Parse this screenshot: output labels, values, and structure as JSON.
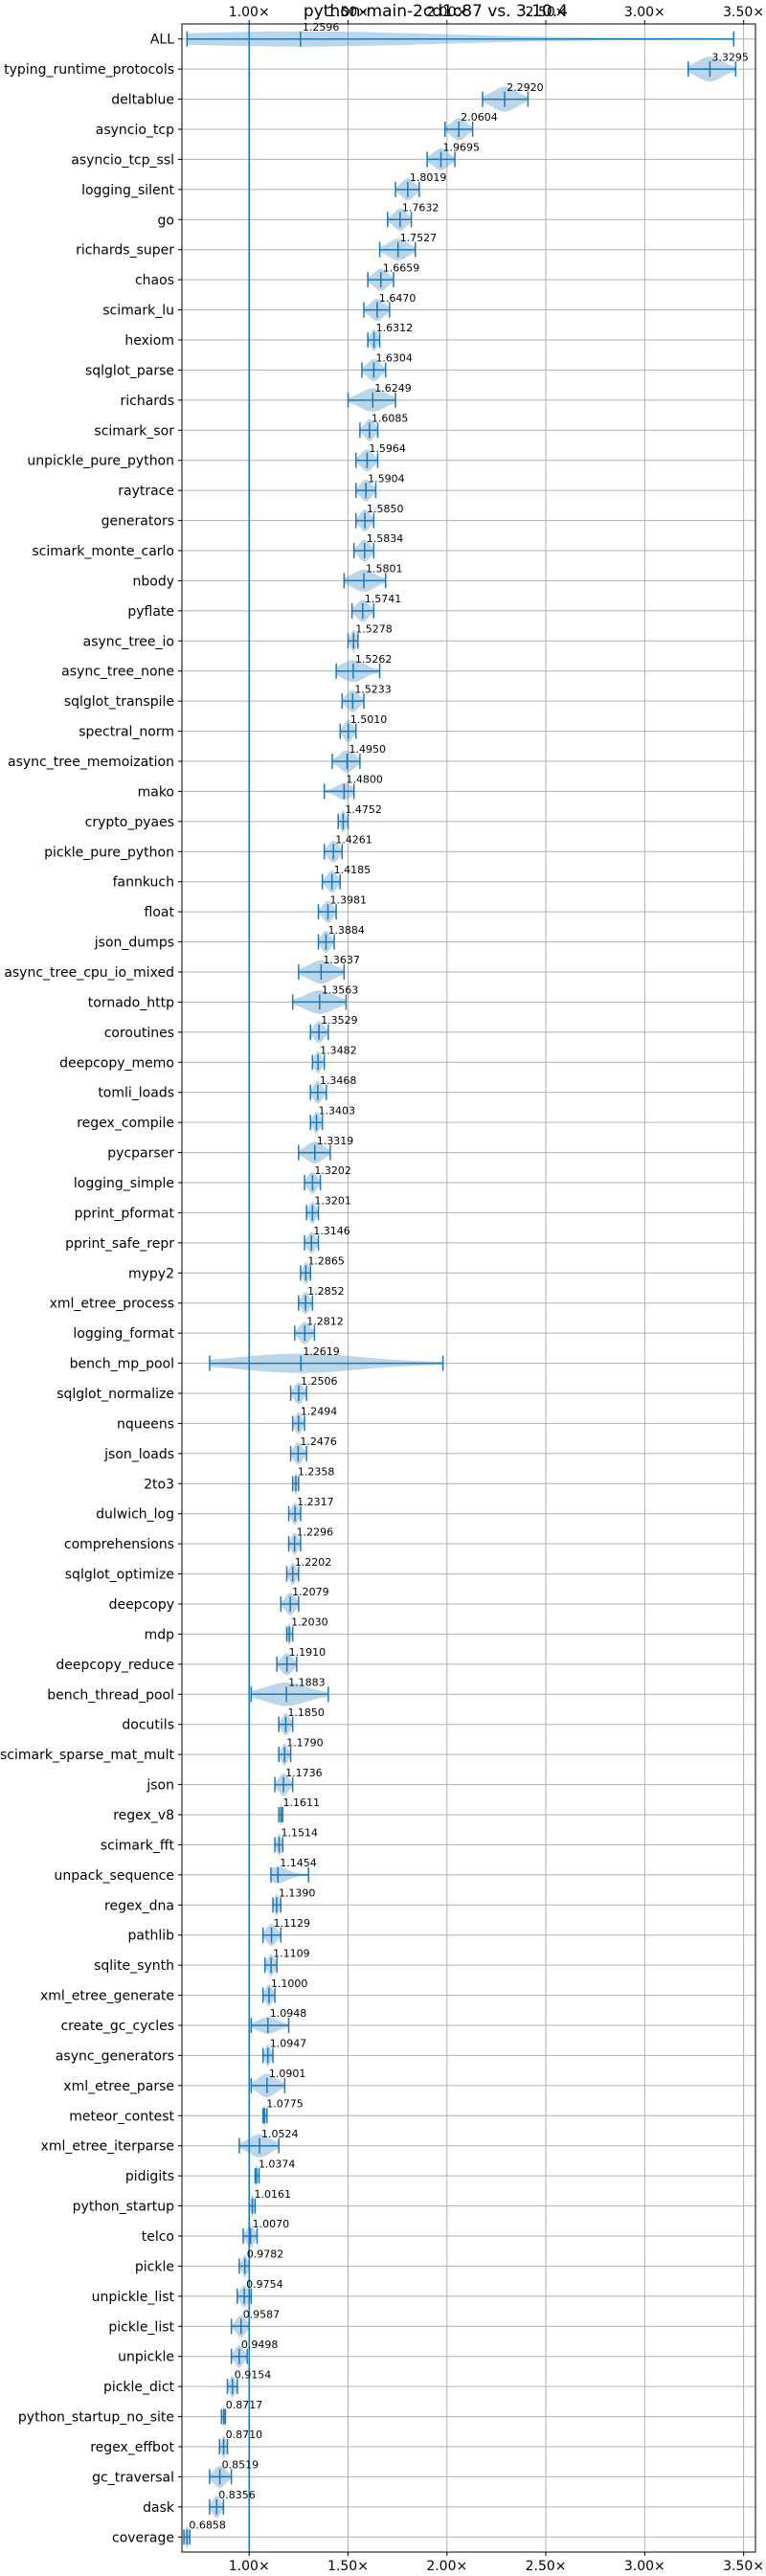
{
  "chart_data": {
    "type": "violin",
    "title": "python-main-2cd1c87 vs. 3.10.4",
    "xlabel": "",
    "ylabel": "",
    "xlim": [
      0.66,
      3.56
    ],
    "x_ticks": [
      1.0,
      1.5,
      2.0,
      2.5,
      3.0,
      3.5
    ],
    "x_tick_labels": [
      "1.00×",
      "1.50×",
      "2.00×",
      "2.50×",
      "3.00×",
      "3.50×"
    ],
    "reference_line": 1.0,
    "grid": true,
    "series_color": "#1f77b4",
    "benchmarks": [
      {
        "name": "ALL",
        "mean": 1.2596,
        "label": "1.2596",
        "min": 0.6858,
        "max": 3.45,
        "width": 0.55
      },
      {
        "name": "typing_runtime_protocols",
        "mean": 3.3295,
        "label": "3.3295",
        "min": 3.22,
        "max": 3.46,
        "width": 0.9
      },
      {
        "name": "deltablue",
        "mean": 2.292,
        "label": "2.2920",
        "min": 2.18,
        "max": 2.41,
        "width": 0.9
      },
      {
        "name": "asyncio_tcp",
        "mean": 2.0604,
        "label": "2.0604",
        "min": 1.99,
        "max": 2.13,
        "width": 0.8
      },
      {
        "name": "asyncio_tcp_ssl",
        "mean": 1.9695,
        "label": "1.9695",
        "min": 1.9,
        "max": 2.04,
        "width": 0.8
      },
      {
        "name": "logging_silent",
        "mean": 1.8019,
        "label": "1.8019",
        "min": 1.74,
        "max": 1.86,
        "width": 0.8
      },
      {
        "name": "go",
        "mean": 1.7632,
        "label": "1.7632",
        "min": 1.7,
        "max": 1.82,
        "width": 0.8
      },
      {
        "name": "richards_super",
        "mean": 1.7527,
        "label": "1.7527",
        "min": 1.66,
        "max": 1.84,
        "width": 0.8
      },
      {
        "name": "chaos",
        "mean": 1.6659,
        "label": "1.6659",
        "min": 1.6,
        "max": 1.73,
        "width": 0.8
      },
      {
        "name": "scimark_lu",
        "mean": 1.647,
        "label": "1.6470",
        "min": 1.58,
        "max": 1.71,
        "width": 0.8
      },
      {
        "name": "hexiom",
        "mean": 1.6312,
        "label": "1.6312",
        "min": 1.6,
        "max": 1.66,
        "width": 0.8
      },
      {
        "name": "sqlglot_parse",
        "mean": 1.6304,
        "label": "1.6304",
        "min": 1.57,
        "max": 1.69,
        "width": 0.8
      },
      {
        "name": "richards",
        "mean": 1.6249,
        "label": "1.6249",
        "min": 1.5,
        "max": 1.74,
        "width": 0.85
      },
      {
        "name": "scimark_sor",
        "mean": 1.6085,
        "label": "1.6085",
        "min": 1.56,
        "max": 1.65,
        "width": 0.8
      },
      {
        "name": "unpickle_pure_python",
        "mean": 1.5964,
        "label": "1.5964",
        "min": 1.54,
        "max": 1.65,
        "width": 0.8
      },
      {
        "name": "raytrace",
        "mean": 1.5904,
        "label": "1.5904",
        "min": 1.54,
        "max": 1.64,
        "width": 0.8
      },
      {
        "name": "generators",
        "mean": 1.585,
        "label": "1.5850",
        "min": 1.54,
        "max": 1.63,
        "width": 0.8
      },
      {
        "name": "scimark_monte_carlo",
        "mean": 1.5834,
        "label": "1.5834",
        "min": 1.53,
        "max": 1.63,
        "width": 0.8
      },
      {
        "name": "nbody",
        "mean": 1.5801,
        "label": "1.5801",
        "min": 1.48,
        "max": 1.69,
        "width": 0.8
      },
      {
        "name": "pyflate",
        "mean": 1.5741,
        "label": "1.5741",
        "min": 1.52,
        "max": 1.63,
        "width": 0.8
      },
      {
        "name": "async_tree_io",
        "mean": 1.5278,
        "label": "1.5278",
        "min": 1.5,
        "max": 1.55,
        "width": 0.8
      },
      {
        "name": "async_tree_none",
        "mean": 1.5262,
        "label": "1.5262",
        "min": 1.44,
        "max": 1.66,
        "width": 0.8
      },
      {
        "name": "sqlglot_transpile",
        "mean": 1.5233,
        "label": "1.5233",
        "min": 1.47,
        "max": 1.58,
        "width": 0.8
      },
      {
        "name": "spectral_norm",
        "mean": 1.501,
        "label": "1.5010",
        "min": 1.46,
        "max": 1.54,
        "width": 0.8
      },
      {
        "name": "async_tree_memoization",
        "mean": 1.495,
        "label": "1.4950",
        "min": 1.42,
        "max": 1.56,
        "width": 0.8
      },
      {
        "name": "mako",
        "mean": 1.48,
        "label": "1.4800",
        "min": 1.38,
        "max": 1.53,
        "width": 0.6
      },
      {
        "name": "crypto_pyaes",
        "mean": 1.4752,
        "label": "1.4752",
        "min": 1.45,
        "max": 1.5,
        "width": 0.8
      },
      {
        "name": "pickle_pure_python",
        "mean": 1.4261,
        "label": "1.4261",
        "min": 1.38,
        "max": 1.47,
        "width": 0.8
      },
      {
        "name": "fannkuch",
        "mean": 1.4185,
        "label": "1.4185",
        "min": 1.37,
        "max": 1.46,
        "width": 0.8
      },
      {
        "name": "float",
        "mean": 1.3981,
        "label": "1.3981",
        "min": 1.35,
        "max": 1.44,
        "width": 0.8
      },
      {
        "name": "json_dumps",
        "mean": 1.3884,
        "label": "1.3884",
        "min": 1.35,
        "max": 1.43,
        "width": 0.8
      },
      {
        "name": "async_tree_cpu_io_mixed",
        "mean": 1.3637,
        "label": "1.3637",
        "min": 1.25,
        "max": 1.48,
        "width": 0.85
      },
      {
        "name": "tornado_http",
        "mean": 1.3563,
        "label": "1.3563",
        "min": 1.22,
        "max": 1.49,
        "width": 0.85
      },
      {
        "name": "coroutines",
        "mean": 1.3529,
        "label": "1.3529",
        "min": 1.31,
        "max": 1.4,
        "width": 0.8
      },
      {
        "name": "deepcopy_memo",
        "mean": 1.3482,
        "label": "1.3482",
        "min": 1.32,
        "max": 1.38,
        "width": 0.8
      },
      {
        "name": "tomli_loads",
        "mean": 1.3468,
        "label": "1.3468",
        "min": 1.31,
        "max": 1.39,
        "width": 0.8
      },
      {
        "name": "regex_compile",
        "mean": 1.3403,
        "label": "1.3403",
        "min": 1.31,
        "max": 1.37,
        "width": 0.8
      },
      {
        "name": "pycparser",
        "mean": 1.3319,
        "label": "1.3319",
        "min": 1.25,
        "max": 1.41,
        "width": 0.8
      },
      {
        "name": "logging_simple",
        "mean": 1.3202,
        "label": "1.3202",
        "min": 1.28,
        "max": 1.36,
        "width": 0.8
      },
      {
        "name": "pprint_pformat",
        "mean": 1.3201,
        "label": "1.3201",
        "min": 1.29,
        "max": 1.35,
        "width": 0.8
      },
      {
        "name": "pprint_safe_repr",
        "mean": 1.3146,
        "label": "1.3146",
        "min": 1.28,
        "max": 1.35,
        "width": 0.8
      },
      {
        "name": "mypy2",
        "mean": 1.2865,
        "label": "1.2865",
        "min": 1.26,
        "max": 1.31,
        "width": 0.8
      },
      {
        "name": "xml_etree_process",
        "mean": 1.2852,
        "label": "1.2852",
        "min": 1.25,
        "max": 1.32,
        "width": 0.8
      },
      {
        "name": "logging_format",
        "mean": 1.2812,
        "label": "1.2812",
        "min": 1.23,
        "max": 1.33,
        "width": 0.8
      },
      {
        "name": "bench_mp_pool",
        "mean": 1.2619,
        "label": "1.2619",
        "min": 0.8,
        "max": 1.98,
        "width": 0.7
      },
      {
        "name": "sqlglot_normalize",
        "mean": 1.2506,
        "label": "1.2506",
        "min": 1.21,
        "max": 1.29,
        "width": 0.8
      },
      {
        "name": "nqueens",
        "mean": 1.2494,
        "label": "1.2494",
        "min": 1.22,
        "max": 1.28,
        "width": 0.8
      },
      {
        "name": "json_loads",
        "mean": 1.2476,
        "label": "1.2476",
        "min": 1.21,
        "max": 1.29,
        "width": 0.8
      },
      {
        "name": "2to3",
        "mean": 1.2358,
        "label": "1.2358",
        "min": 1.22,
        "max": 1.25,
        "width": 0.8
      },
      {
        "name": "dulwich_log",
        "mean": 1.2317,
        "label": "1.2317",
        "min": 1.2,
        "max": 1.26,
        "width": 0.8
      },
      {
        "name": "comprehensions",
        "mean": 1.2296,
        "label": "1.2296",
        "min": 1.2,
        "max": 1.26,
        "width": 0.8
      },
      {
        "name": "sqlglot_optimize",
        "mean": 1.2202,
        "label": "1.2202",
        "min": 1.19,
        "max": 1.25,
        "width": 0.8
      },
      {
        "name": "deepcopy",
        "mean": 1.2079,
        "label": "1.2079",
        "min": 1.16,
        "max": 1.25,
        "width": 0.8
      },
      {
        "name": "mdp",
        "mean": 1.203,
        "label": "1.2030",
        "min": 1.19,
        "max": 1.22,
        "width": 0.8
      },
      {
        "name": "deepcopy_reduce",
        "mean": 1.191,
        "label": "1.1910",
        "min": 1.14,
        "max": 1.24,
        "width": 0.8
      },
      {
        "name": "bench_thread_pool",
        "mean": 1.1883,
        "label": "1.1883",
        "min": 1.01,
        "max": 1.4,
        "width": 0.85
      },
      {
        "name": "docutils",
        "mean": 1.185,
        "label": "1.1850",
        "min": 1.15,
        "max": 1.22,
        "width": 0.8
      },
      {
        "name": "scimark_sparse_mat_mult",
        "mean": 1.179,
        "label": "1.1790",
        "min": 1.15,
        "max": 1.21,
        "width": 0.8
      },
      {
        "name": "json",
        "mean": 1.1736,
        "label": "1.1736",
        "min": 1.13,
        "max": 1.22,
        "width": 0.8
      },
      {
        "name": "regex_v8",
        "mean": 1.1611,
        "label": "1.1611",
        "min": 1.15,
        "max": 1.17,
        "width": 0.8
      },
      {
        "name": "scimark_fft",
        "mean": 1.1514,
        "label": "1.1514",
        "min": 1.13,
        "max": 1.17,
        "width": 0.8
      },
      {
        "name": "unpack_sequence",
        "mean": 1.1454,
        "label": "1.1454",
        "min": 1.11,
        "max": 1.3,
        "width": 0.6
      },
      {
        "name": "regex_dna",
        "mean": 1.139,
        "label": "1.1390",
        "min": 1.12,
        "max": 1.16,
        "width": 0.8
      },
      {
        "name": "pathlib",
        "mean": 1.1129,
        "label": "1.1129",
        "min": 1.07,
        "max": 1.16,
        "width": 0.8
      },
      {
        "name": "sqlite_synth",
        "mean": 1.1109,
        "label": "1.1109",
        "min": 1.08,
        "max": 1.14,
        "width": 0.8
      },
      {
        "name": "xml_etree_generate",
        "mean": 1.1,
        "label": "1.1000",
        "min": 1.07,
        "max": 1.13,
        "width": 0.8
      },
      {
        "name": "create_gc_cycles",
        "mean": 1.0948,
        "label": "1.0948",
        "min": 1.01,
        "max": 1.2,
        "width": 0.6
      },
      {
        "name": "async_generators",
        "mean": 1.0947,
        "label": "1.0947",
        "min": 1.07,
        "max": 1.12,
        "width": 0.8
      },
      {
        "name": "xml_etree_parse",
        "mean": 1.0901,
        "label": "1.0901",
        "min": 1.01,
        "max": 1.18,
        "width": 0.85
      },
      {
        "name": "meteor_contest",
        "mean": 1.0775,
        "label": "1.0775",
        "min": 1.07,
        "max": 1.09,
        "width": 0.8
      },
      {
        "name": "xml_etree_iterparse",
        "mean": 1.0524,
        "label": "1.0524",
        "min": 0.95,
        "max": 1.15,
        "width": 0.85
      },
      {
        "name": "pidigits",
        "mean": 1.0374,
        "label": "1.0374",
        "min": 1.03,
        "max": 1.05,
        "width": 0.8
      },
      {
        "name": "python_startup",
        "mean": 1.0161,
        "label": "1.0161",
        "min": 1.0,
        "max": 1.03,
        "width": 0.8
      },
      {
        "name": "telco",
        "mean": 1.007,
        "label": "1.0070",
        "min": 0.97,
        "max": 1.04,
        "width": 0.8
      },
      {
        "name": "pickle",
        "mean": 0.9782,
        "label": "0.9782",
        "min": 0.95,
        "max": 1.0,
        "width": 0.8
      },
      {
        "name": "unpickle_list",
        "mean": 0.9754,
        "label": "0.9754",
        "min": 0.94,
        "max": 1.01,
        "width": 0.8
      },
      {
        "name": "pickle_list",
        "mean": 0.9587,
        "label": "0.9587",
        "min": 0.91,
        "max": 1.0,
        "width": 0.8
      },
      {
        "name": "unpickle",
        "mean": 0.9498,
        "label": "0.9498",
        "min": 0.91,
        "max": 0.99,
        "width": 0.8
      },
      {
        "name": "pickle_dict",
        "mean": 0.9154,
        "label": "0.9154",
        "min": 0.89,
        "max": 0.94,
        "width": 0.8
      },
      {
        "name": "python_startup_no_site",
        "mean": 0.8717,
        "label": "0.8717",
        "min": 0.86,
        "max": 0.88,
        "width": 0.8
      },
      {
        "name": "regex_effbot",
        "mean": 0.871,
        "label": "0.8710",
        "min": 0.85,
        "max": 0.89,
        "width": 0.8
      },
      {
        "name": "gc_traversal",
        "mean": 0.8519,
        "label": "0.8519",
        "min": 0.8,
        "max": 0.91,
        "width": 0.8
      },
      {
        "name": "dask",
        "mean": 0.8356,
        "label": "0.8356",
        "min": 0.8,
        "max": 0.87,
        "width": 0.8
      },
      {
        "name": "coverage",
        "mean": 0.6858,
        "label": "0.6858",
        "min": 0.67,
        "max": 0.7,
        "width": 0.8
      }
    ]
  }
}
